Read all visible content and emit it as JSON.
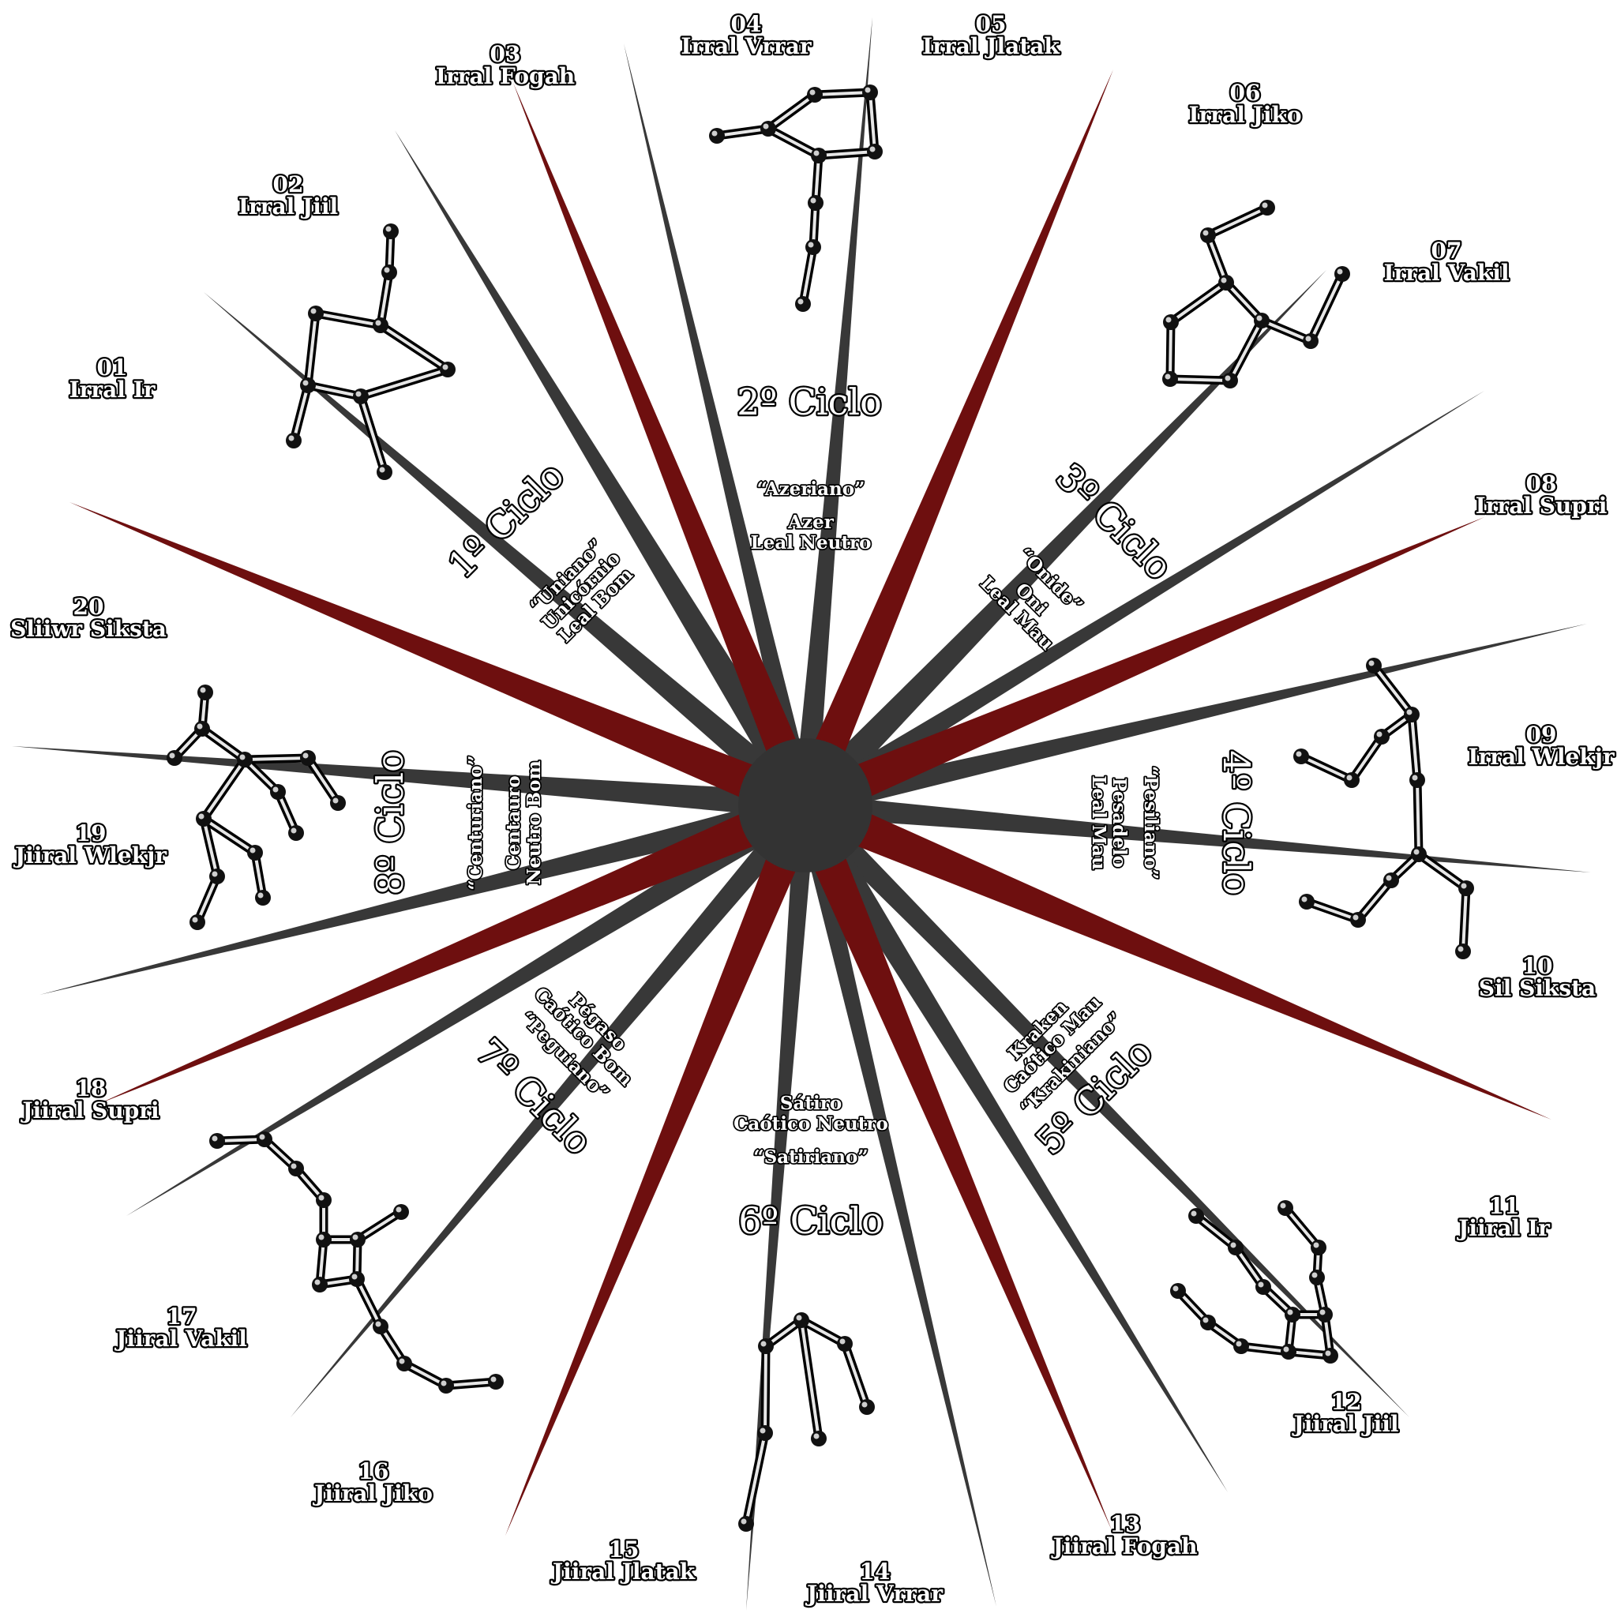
{
  "colors": {
    "dark_ray": "#383838",
    "red_ray": "#6e0f0f",
    "center": "#333333"
  },
  "months": [
    {
      "n": "01",
      "name": "Irral Ir"
    },
    {
      "n": "02",
      "name": "Irral Jiil"
    },
    {
      "n": "03",
      "name": "Irral Fogah"
    },
    {
      "n": "04",
      "name": "Irral Vrrar"
    },
    {
      "n": "05",
      "name": "Irral Jlatak"
    },
    {
      "n": "06",
      "name": "Irral Jiko"
    },
    {
      "n": "07",
      "name": "Irral Vakil"
    },
    {
      "n": "08",
      "name": "Irral Supri"
    },
    {
      "n": "09",
      "name": "Irral Wlekjr"
    },
    {
      "n": "10",
      "name": "Sil Siksta"
    },
    {
      "n": "11",
      "name": "Jiiral Ir"
    },
    {
      "n": "12",
      "name": "Jiiral Jiil"
    },
    {
      "n": "13",
      "name": "Jiiral Fogah"
    },
    {
      "n": "14",
      "name": "Jiiral Vrrar"
    },
    {
      "n": "15",
      "name": "Jiiral Jlatak"
    },
    {
      "n": "16",
      "name": "Jiiral Jiko"
    },
    {
      "n": "17",
      "name": "Jiiral Vakil"
    },
    {
      "n": "18",
      "name": "Jiiral Supri"
    },
    {
      "n": "19",
      "name": "Jiiral Wlekjr"
    },
    {
      "n": "20",
      "name": "Sliiwr Siksta"
    }
  ],
  "cycles": [
    {
      "title": "1º Ciclo",
      "demonym": "“Uniano”",
      "being": "Unicórnio",
      "alignment": "Leal Bom"
    },
    {
      "title": "2º Ciclo",
      "demonym": "“Azeriano”",
      "being": "Azer",
      "alignment": "Leal Neutro"
    },
    {
      "title": "3º Ciclo",
      "demonym": "“Onide”",
      "being": "Oni",
      "alignment": "Leal Mau"
    },
    {
      "title": "4º Ciclo",
      "demonym": "“Pesiliano”",
      "being": "Pesadelo",
      "alignment": "Leal Mau"
    },
    {
      "title": "5º Ciclo",
      "demonym": "“Krakiniano”",
      "being": "Kraken",
      "alignment": "Caótico Mau"
    },
    {
      "title": "6º Ciclo",
      "demonym": "“Satiriano”",
      "being": "Sátiro",
      "alignment": "Caótico Neutro"
    },
    {
      "title": "7º Ciclo",
      "demonym": "“Peguiano”",
      "being": "Pégaso",
      "alignment": "Caótico Bom"
    },
    {
      "title": "8º Ciclo",
      "demonym": "“Centuriano”",
      "being": "Centauro",
      "alignment": "Neutro Bom"
    }
  ]
}
